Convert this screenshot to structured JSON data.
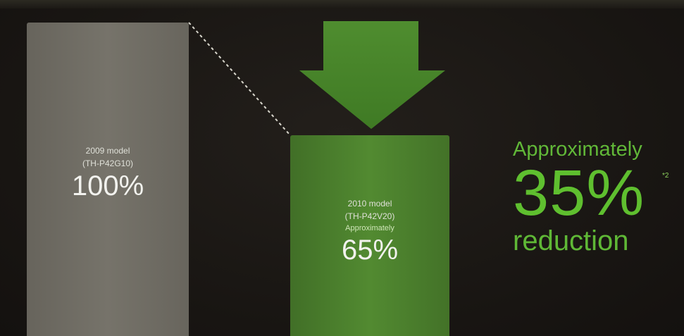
{
  "chart_data": {
    "type": "bar",
    "categories": [
      "2009 model (TH-P42G10)",
      "2010 model (TH-P42V20)"
    ],
    "values": [
      100,
      65
    ],
    "ylim": [
      0,
      100
    ],
    "bars": [
      {
        "line1": "2009 model",
        "line2": "(TH-P42G10)",
        "qualifier": "",
        "value_text": "100%",
        "value": 100,
        "color": "#716e66"
      },
      {
        "line1": "2010 model",
        "line2": "(TH-P42V20)",
        "qualifier": "Approximately",
        "value_text": "65%",
        "value": 65,
        "color": "#4a7f2c"
      }
    ],
    "annotation": {
      "pre": "Approximately",
      "value": "35%",
      "note": "*2",
      "post": "reduction"
    },
    "colors": {
      "accent_green": "#5fbf2f",
      "arrow_green": "#4a8a2c",
      "old_bar": "#716e66",
      "new_bar": "#4a7f2c"
    }
  }
}
